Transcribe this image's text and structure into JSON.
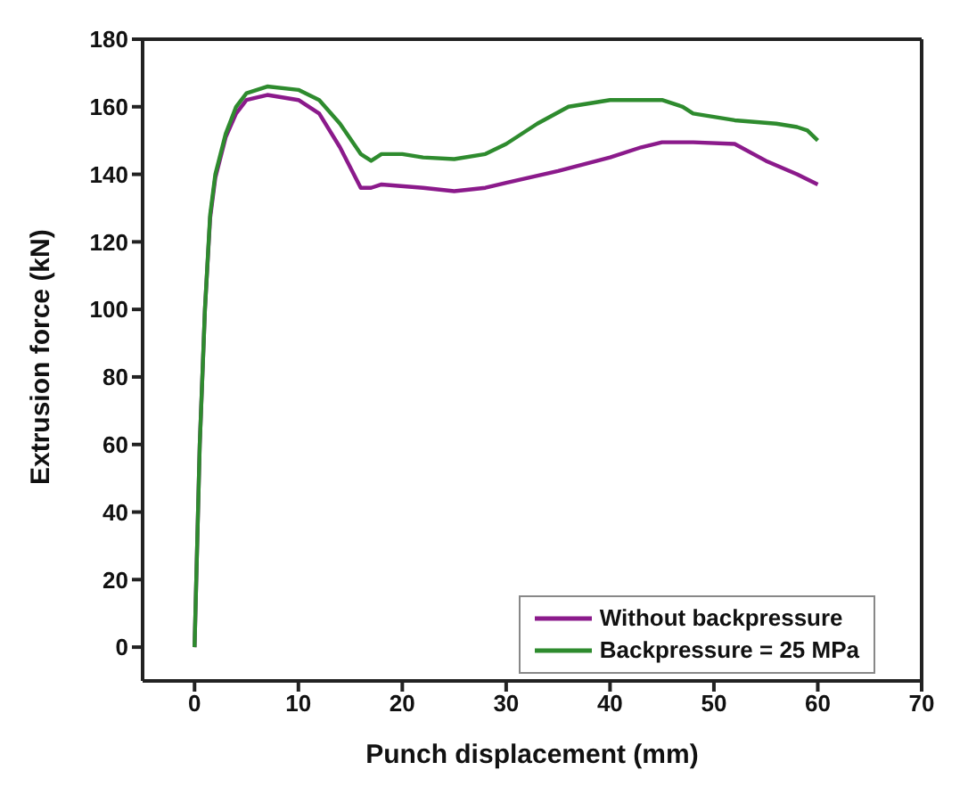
{
  "chart_data": {
    "type": "line",
    "xlabel": "Punch displacement (mm)",
    "ylabel": "Extrusion force (kN)",
    "xlim": [
      -5,
      70
    ],
    "xticks": [
      0,
      10,
      20,
      30,
      40,
      50,
      60,
      70
    ],
    "ylim": [
      -10,
      180
    ],
    "yticks": [
      0,
      20,
      40,
      60,
      80,
      100,
      120,
      140,
      160,
      180
    ],
    "grid": false,
    "legend": "bottom right",
    "marker": "none",
    "line_style": "solid",
    "series": [
      {
        "name": "Without backpressure",
        "color": "#8b1a8b",
        "x": [
          0,
          0.5,
          1,
          1.5,
          2,
          3,
          4,
          5,
          7,
          10,
          12,
          14,
          16,
          17,
          18,
          22,
          25,
          28,
          30,
          35,
          40,
          43,
          45,
          48,
          52,
          55,
          58,
          60
        ],
        "values": [
          0,
          60,
          100,
          127,
          139,
          151,
          158,
          162,
          163.5,
          162,
          158,
          148,
          136,
          136,
          137,
          136,
          135,
          136,
          137.5,
          141,
          145,
          148,
          149.5,
          149.5,
          149,
          144,
          140,
          137
        ]
      },
      {
        "name": "Backpressure = 25 MPa",
        "color": "#2e8b2e",
        "x": [
          0,
          0.5,
          1,
          1.5,
          2,
          3,
          4,
          5,
          7,
          10,
          12,
          14,
          16,
          17,
          18,
          20,
          22,
          25,
          28,
          30,
          33,
          36,
          40,
          45,
          47,
          48,
          52,
          56,
          58,
          59,
          60
        ],
        "values": [
          0,
          60,
          100,
          128,
          140,
          152,
          160,
          164,
          166,
          165,
          162,
          155,
          146,
          144,
          146,
          146,
          145,
          144.5,
          146,
          149,
          155,
          160,
          162,
          162,
          160,
          158,
          156,
          155,
          154,
          153,
          150
        ]
      }
    ]
  }
}
